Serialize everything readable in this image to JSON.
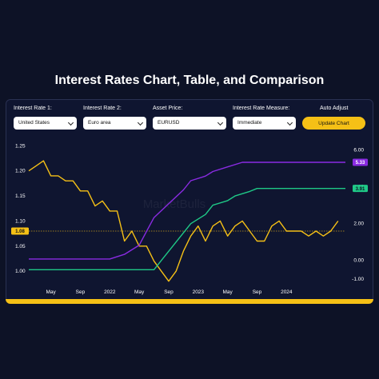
{
  "title": "Interest Rates Chart, Table, and Comparison",
  "controls": {
    "rate1_label": "Interest Rate 1:",
    "rate1_value": "United States",
    "rate2_label": "Interest Rate 2:",
    "rate2_value": "Euro area",
    "asset_label": "Asset Price:",
    "asset_value": "EURUSD",
    "measure_label": "Interest Rate Measure:",
    "measure_value": "Immediate",
    "auto_adjust_label": "Auto Adjust",
    "update_button": "Update Chart"
  },
  "watermark": "MarketBulls",
  "colors": {
    "background": "#0d1226",
    "accent": "#f5c016",
    "us_rate": "#8a2be2",
    "euro_rate": "#1fc987",
    "eurusd": "#f5c016"
  },
  "chart_data": {
    "type": "line",
    "x_ticks": [
      "May",
      "Sep",
      "2022",
      "May",
      "Sep",
      "2023",
      "May",
      "Sep",
      "2024"
    ],
    "x_range": [
      "2021-02",
      "2024-09"
    ],
    "left_axis": {
      "ticks": [
        "1.25",
        "1.20",
        "1.15",
        "1.10",
        "1.05",
        "1.00"
      ],
      "ylim": [
        0.97,
        1.26
      ]
    },
    "right_axis": {
      "ticks": [
        "6.00",
        "4.00",
        "2.00",
        "0.00",
        "-1.00"
      ],
      "ylim": [
        -1.4,
        6.5
      ]
    },
    "current_price_label": "1.08",
    "current_price": 1.08,
    "series": [
      {
        "axis": "left",
        "color": "#f5c016",
        "x": [
          "2021-02",
          "2021-03",
          "2021-04",
          "2021-05",
          "2021-06",
          "2021-07",
          "2021-08",
          "2021-09",
          "2021-10",
          "2021-11",
          "2021-12",
          "2022-01",
          "2022-02",
          "2022-03",
          "2022-04",
          "2022-05",
          "2022-06",
          "2022-07",
          "2022-08",
          "2022-09",
          "2022-10",
          "2022-11",
          "2022-12",
          "2023-01",
          "2023-02",
          "2023-03",
          "2023-04",
          "2023-05",
          "2023-06",
          "2023-07",
          "2023-08",
          "2023-09",
          "2023-10",
          "2023-11",
          "2023-12",
          "2024-01",
          "2024-02",
          "2024-03",
          "2024-04",
          "2024-05",
          "2024-06",
          "2024-07",
          "2024-08"
        ],
        "values": [
          1.2,
          1.21,
          1.22,
          1.19,
          1.19,
          1.18,
          1.18,
          1.16,
          1.16,
          1.13,
          1.14,
          1.12,
          1.12,
          1.06,
          1.08,
          1.05,
          1.05,
          1.02,
          1.0,
          0.98,
          1.0,
          1.04,
          1.07,
          1.09,
          1.06,
          1.09,
          1.1,
          1.07,
          1.09,
          1.1,
          1.08,
          1.06,
          1.06,
          1.09,
          1.1,
          1.08,
          1.08,
          1.08,
          1.07,
          1.08,
          1.07,
          1.08,
          1.1
        ]
      },
      {
        "axis": "right",
        "color": "#8a2be2",
        "label": "5.33",
        "x": [
          "2021-02",
          "2021-06",
          "2021-10",
          "2022-01",
          "2022-03",
          "2022-05",
          "2022-06",
          "2022-07",
          "2022-09",
          "2022-11",
          "2022-12",
          "2023-02",
          "2023-03",
          "2023-05",
          "2023-07",
          "2023-09",
          "2024-09"
        ],
        "values": [
          0.08,
          0.08,
          0.08,
          0.08,
          0.33,
          0.83,
          1.58,
          2.33,
          3.08,
          3.83,
          4.33,
          4.58,
          4.83,
          5.08,
          5.33,
          5.33,
          5.33
        ]
      },
      {
        "axis": "right",
        "color": "#1fc987",
        "label": "3.91",
        "x": [
          "2021-02",
          "2022-07",
          "2022-08",
          "2022-09",
          "2022-10",
          "2022-11",
          "2022-12",
          "2023-02",
          "2023-03",
          "2023-05",
          "2023-06",
          "2023-08",
          "2023-09",
          "2024-09"
        ],
        "values": [
          -0.5,
          -0.5,
          0.0,
          0.5,
          1.0,
          1.5,
          2.0,
          2.5,
          3.0,
          3.25,
          3.5,
          3.75,
          3.91,
          3.91
        ]
      }
    ]
  }
}
